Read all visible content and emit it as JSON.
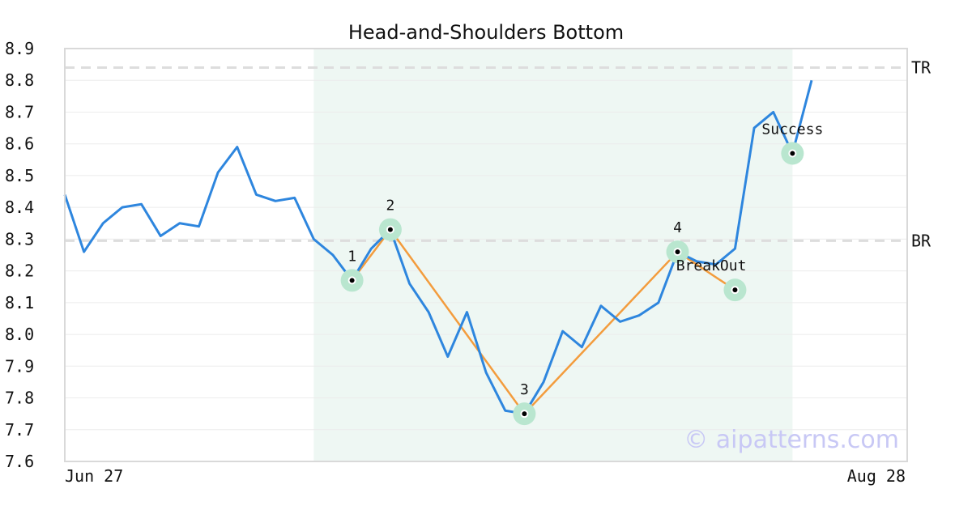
{
  "chart_data": {
    "type": "line",
    "title": "Head-and-Shoulders Bottom",
    "ylim": [
      7.6,
      8.9
    ],
    "y_ticks": [
      "8.9",
      "8.8",
      "8.7",
      "8.6",
      "8.5",
      "8.4",
      "8.3",
      "8.2",
      "8.1",
      "8.0",
      "7.9",
      "7.8",
      "7.7",
      "7.6"
    ],
    "x_tick_labels": [
      "Jun 27",
      "Aug 28"
    ],
    "grid": true,
    "colors": {
      "price": "#2e86de",
      "pattern": "#f39c3d",
      "highlight_band": "#eef7f3",
      "marker_halo": "#b9e6cf",
      "reference_line": "#dddddd",
      "watermark": "#c8c8f5"
    },
    "series": [
      {
        "values": [
          8.44,
          8.26,
          8.35,
          8.4,
          8.41,
          8.31,
          8.35,
          8.34,
          8.51,
          8.59,
          8.44,
          8.42,
          8.43,
          8.3,
          8.25,
          8.17,
          8.27,
          8.33,
          8.16,
          8.07,
          7.93,
          8.07,
          7.88,
          7.76,
          7.75,
          7.85,
          8.01,
          7.96,
          8.09,
          8.04,
          8.06,
          8.1,
          8.26,
          8.23,
          8.22,
          8.27,
          8.65,
          8.7,
          8.57,
          8.8
        ]
      }
    ],
    "pattern_points": [
      {
        "label": "1",
        "index": 15,
        "value": 8.17
      },
      {
        "label": "2",
        "index": 17,
        "value": 8.33
      },
      {
        "label": "3",
        "index": 24,
        "value": 7.75
      },
      {
        "label": "4",
        "index": 32,
        "value": 8.26
      },
      {
        "label": "",
        "index": 35,
        "value": 8.14
      }
    ],
    "highlight_range": {
      "start_index": 13,
      "end_index": 38
    },
    "reference_lines": [
      {
        "label": "TR",
        "value": 8.84
      },
      {
        "label": "BR",
        "value": 8.295
      }
    ],
    "annotations": [
      {
        "text": "BreakOut",
        "index": 35,
        "value": 8.14
      },
      {
        "text": "Success",
        "index": 38,
        "value": 8.57
      }
    ],
    "watermark": "© aipatterns.com"
  }
}
